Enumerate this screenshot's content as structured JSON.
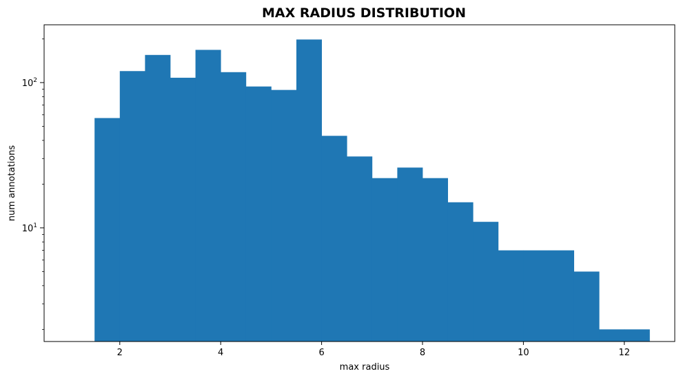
{
  "chart_data": {
    "type": "bar",
    "title": "MAX RADIUS DISTRIBUTION",
    "xlabel": "max radius",
    "ylabel": "num annotations",
    "y_scale": "log",
    "xlim": [
      0.5,
      13.0
    ],
    "ylim": [
      1.65,
      250
    ],
    "bar_color": "#1f77b4",
    "grid": false,
    "x_ticks": [
      {
        "value": 2,
        "label": "2"
      },
      {
        "value": 4,
        "label": "4"
      },
      {
        "value": 6,
        "label": "6"
      },
      {
        "value": 8,
        "label": "8"
      },
      {
        "value": 10,
        "label": "10"
      },
      {
        "value": 12,
        "label": "12"
      }
    ],
    "y_ticks": [
      {
        "value": 10,
        "base": "10",
        "exp": "1"
      },
      {
        "value": 100,
        "base": "10",
        "exp": "2"
      }
    ],
    "bins": [
      {
        "start": 1.5,
        "end": 2.0,
        "count": 57
      },
      {
        "start": 2.0,
        "end": 2.5,
        "count": 120
      },
      {
        "start": 2.5,
        "end": 3.0,
        "count": 155
      },
      {
        "start": 3.0,
        "end": 3.5,
        "count": 108
      },
      {
        "start": 3.5,
        "end": 4.0,
        "count": 168
      },
      {
        "start": 4.0,
        "end": 4.5,
        "count": 118
      },
      {
        "start": 4.5,
        "end": 5.0,
        "count": 94
      },
      {
        "start": 5.0,
        "end": 5.5,
        "count": 89
      },
      {
        "start": 5.5,
        "end": 6.0,
        "count": 198
      },
      {
        "start": 6.0,
        "end": 6.5,
        "count": 43
      },
      {
        "start": 6.5,
        "end": 7.0,
        "count": 31
      },
      {
        "start": 7.0,
        "end": 7.5,
        "count": 22
      },
      {
        "start": 7.5,
        "end": 8.0,
        "count": 26
      },
      {
        "start": 8.0,
        "end": 8.5,
        "count": 22
      },
      {
        "start": 8.5,
        "end": 9.0,
        "count": 15
      },
      {
        "start": 9.0,
        "end": 9.5,
        "count": 11
      },
      {
        "start": 9.5,
        "end": 10.0,
        "count": 7
      },
      {
        "start": 10.0,
        "end": 10.5,
        "count": 7
      },
      {
        "start": 10.5,
        "end": 11.0,
        "count": 7
      },
      {
        "start": 11.0,
        "end": 11.5,
        "count": 5
      },
      {
        "start": 11.5,
        "end": 12.0,
        "count": 2
      },
      {
        "start": 12.0,
        "end": 12.5,
        "count": 2
      }
    ]
  }
}
